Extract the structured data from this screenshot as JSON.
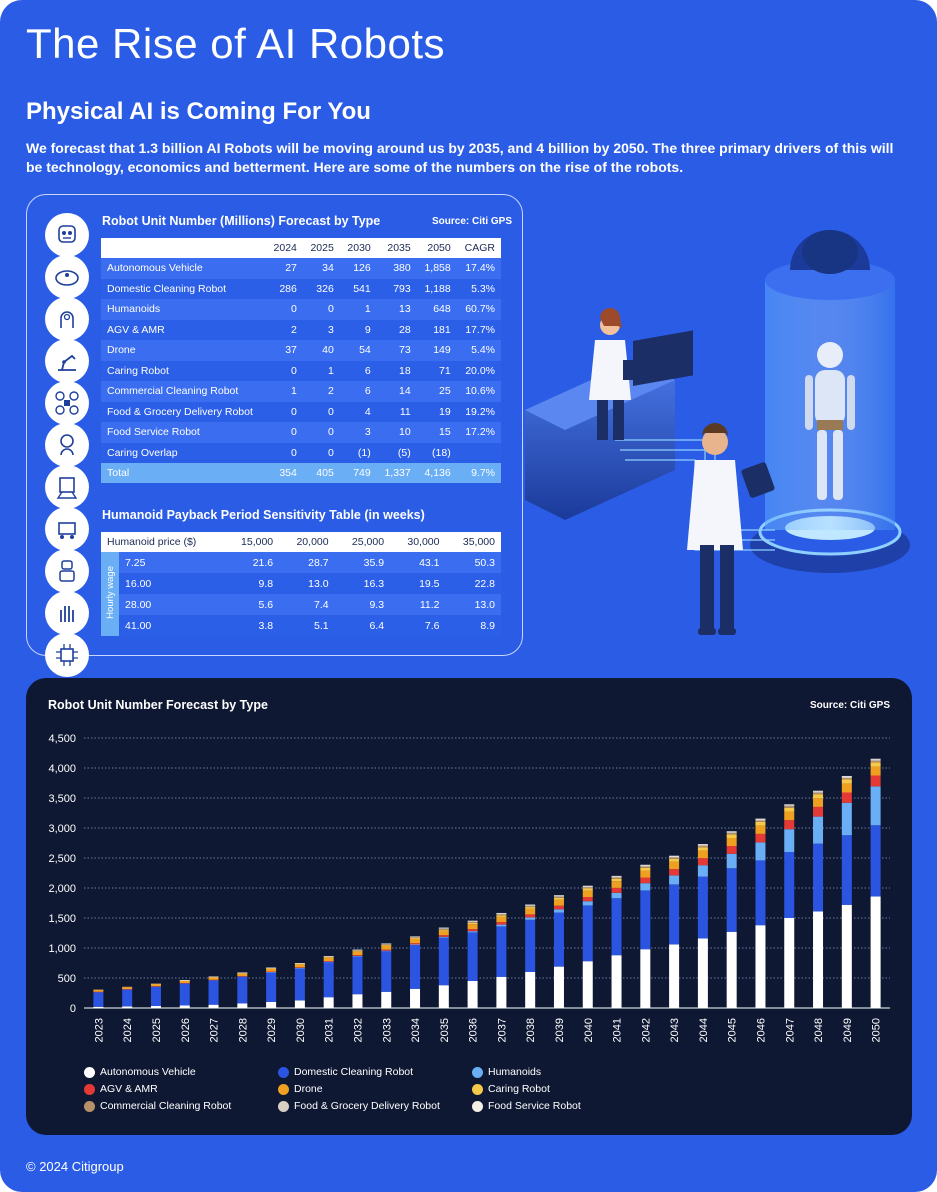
{
  "title": "The Rise of AI Robots",
  "subtitle": "Physical AI is Coming For You",
  "intro": "We forecast that 1.3 billion AI Robots will be moving around us by 2035, and 4 billion by 2050. The three primary drivers of this will be technology, economics and betterment. Here are some of the numbers on the rise of the robots.",
  "icons": [
    "autonomous-vehicle-icon",
    "domestic-cleaning-robot-icon",
    "humanoid-icon",
    "agv-arm-icon",
    "drone-icon",
    "caring-robot-icon",
    "commercial-cleaning-robot-icon",
    "delivery-robot-icon",
    "food-service-robot-icon",
    "caring-hand-icon",
    "chip-icon"
  ],
  "table1": {
    "title": "Robot Unit Number (Millions) Forecast by Type",
    "source": "Source: Citi GPS",
    "headers": [
      "",
      "2024",
      "2025",
      "2030",
      "2035",
      "2050",
      "CAGR"
    ],
    "rows": [
      [
        "Autonomous Vehicle",
        "27",
        "34",
        "126",
        "380",
        "1,858",
        "17.4%"
      ],
      [
        "Domestic Cleaning Robot",
        "286",
        "326",
        "541",
        "793",
        "1,188",
        "5.3%"
      ],
      [
        "Humanoids",
        "0",
        "0",
        "1",
        "13",
        "648",
        "60.7%"
      ],
      [
        "AGV & AMR",
        "2",
        "3",
        "9",
        "28",
        "181",
        "17.7%"
      ],
      [
        "Drone",
        "37",
        "40",
        "54",
        "73",
        "149",
        "5.4%"
      ],
      [
        "Caring Robot",
        "0",
        "1",
        "6",
        "18",
        "71",
        "20.0%"
      ],
      [
        "Commercial Cleaning Robot",
        "1",
        "2",
        "6",
        "14",
        "25",
        "10.6%"
      ],
      [
        "Food & Grocery Delivery Robot",
        "0",
        "0",
        "4",
        "11",
        "19",
        "19.2%"
      ],
      [
        "Food Service Robot",
        "0",
        "0",
        "3",
        "10",
        "15",
        "17.2%"
      ],
      [
        "Caring Overlap",
        "0",
        "0",
        "(1)",
        "(5)",
        "(18)",
        ""
      ]
    ],
    "total": [
      "Total",
      "354",
      "405",
      "749",
      "1,337",
      "4,136",
      "9.7%"
    ]
  },
  "table2": {
    "title": "Humanoid Payback Period Sensitivity Table (in weeks)",
    "headers": [
      "Humanoid price ($)",
      "15,000",
      "20,000",
      "25,000",
      "30,000",
      "35,000"
    ],
    "side_label": "Hourly wage",
    "rows": [
      [
        "7.25",
        "21.6",
        "28.7",
        "35.9",
        "43.1",
        "50.3"
      ],
      [
        "16.00",
        "9.8",
        "13.0",
        "16.3",
        "19.5",
        "22.8"
      ],
      [
        "28.00",
        "5.6",
        "7.4",
        "9.3",
        "11.2",
        "13.0"
      ],
      [
        "41.00",
        "3.8",
        "5.1",
        "6.4",
        "7.6",
        "8.9"
      ]
    ]
  },
  "chart_data": {
    "type": "bar",
    "stacked": true,
    "title": "Robot Unit Number Forecast by Type",
    "source": "Source: Citi GPS",
    "ylim": [
      0,
      4500
    ],
    "yticks": [
      "0",
      "500",
      "1,000",
      "1,500",
      "2,000",
      "2,500",
      "3,000",
      "3,500",
      "4,000",
      "4,500"
    ],
    "grid": true,
    "legend_placement": "bottom",
    "categories": [
      "2023",
      "2024",
      "2025",
      "2026",
      "2027",
      "2028",
      "2029",
      "2030",
      "2031",
      "2032",
      "2033",
      "2034",
      "2035",
      "2036",
      "2037",
      "2038",
      "2039",
      "2040",
      "2041",
      "2042",
      "2043",
      "2044",
      "2045",
      "2046",
      "2047",
      "2048",
      "2049",
      "2050"
    ],
    "series": [
      {
        "name": "Autonomous Vehicle",
        "color": "#ffffff",
        "values": [
          20,
          27,
          34,
          42,
          55,
          75,
          100,
          126,
          180,
          230,
          270,
          320,
          380,
          450,
          520,
          600,
          690,
          780,
          880,
          980,
          1060,
          1160,
          1270,
          1380,
          1500,
          1610,
          1720,
          1858
        ]
      },
      {
        "name": "Domestic Cleaning Robot",
        "color": "#2b55e0",
        "values": [
          250,
          286,
          326,
          370,
          410,
          450,
          500,
          541,
          590,
          635,
          680,
          730,
          793,
          810,
          840,
          870,
          900,
          930,
          950,
          980,
          1000,
          1030,
          1060,
          1080,
          1100,
          1130,
          1160,
          1188
        ]
      },
      {
        "name": "Humanoids",
        "color": "#6aaef6",
        "values": [
          0,
          0,
          0,
          0,
          0,
          0,
          1,
          1,
          2,
          3,
          5,
          8,
          13,
          20,
          30,
          40,
          55,
          70,
          90,
          120,
          150,
          190,
          240,
          300,
          380,
          450,
          540,
          648
        ]
      },
      {
        "name": "AGV & AMR",
        "color": "#e53935",
        "values": [
          1,
          2,
          3,
          4,
          5,
          6,
          7,
          9,
          11,
          14,
          18,
          22,
          28,
          35,
          42,
          50,
          60,
          70,
          82,
          95,
          105,
          118,
          130,
          142,
          152,
          162,
          172,
          181
        ]
      },
      {
        "name": "Drone",
        "color": "#f0a020",
        "values": [
          35,
          37,
          40,
          42,
          45,
          48,
          50,
          54,
          58,
          62,
          66,
          70,
          73,
          80,
          86,
          92,
          98,
          104,
          110,
          116,
          122,
          128,
          133,
          138,
          142,
          145,
          147,
          149
        ]
      },
      {
        "name": "Caring Robot",
        "color": "#f7c948",
        "values": [
          0,
          0,
          1,
          2,
          3,
          4,
          5,
          6,
          8,
          10,
          12,
          15,
          18,
          22,
          26,
          30,
          34,
          38,
          42,
          46,
          50,
          54,
          58,
          61,
          64,
          67,
          69,
          71
        ]
      },
      {
        "name": "Commercial Cleaning Robot",
        "color": "#b89067",
        "values": [
          1,
          1,
          2,
          3,
          3,
          4,
          5,
          6,
          7,
          8,
          10,
          12,
          14,
          15,
          16,
          17,
          18,
          19,
          20,
          21,
          22,
          22,
          23,
          23,
          24,
          24,
          25,
          25
        ]
      },
      {
        "name": "Food & Grocery Delivery Robot",
        "color": "#d8cfc4",
        "values": [
          0,
          0,
          0,
          1,
          1,
          2,
          3,
          4,
          5,
          6,
          8,
          9,
          11,
          12,
          13,
          13,
          14,
          15,
          15,
          16,
          16,
          17,
          17,
          18,
          18,
          18,
          19,
          19
        ]
      },
      {
        "name": "Food Service Robot",
        "color": "#f4eee6",
        "values": [
          0,
          0,
          0,
          1,
          1,
          2,
          2,
          3,
          4,
          5,
          6,
          8,
          10,
          11,
          11,
          12,
          12,
          12,
          13,
          13,
          13,
          14,
          14,
          14,
          14,
          15,
          15,
          15
        ]
      }
    ]
  },
  "footer": "© 2024 Citigroup"
}
